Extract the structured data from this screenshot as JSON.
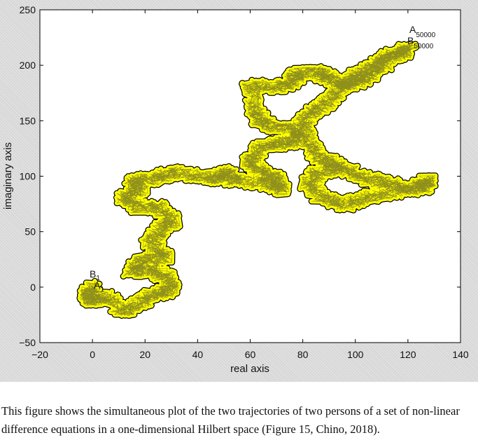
{
  "chart_data": {
    "type": "line",
    "title": "",
    "xlabel": "real axis",
    "ylabel": "imaginary axis",
    "xlim": [
      -20,
      140
    ],
    "ylim": [
      -50,
      250
    ],
    "xticks": [
      -20,
      0,
      20,
      40,
      60,
      80,
      100,
      120,
      140
    ],
    "yticks": [
      -50,
      0,
      50,
      100,
      150,
      200,
      250
    ],
    "grid": false,
    "colors": {
      "fill": "#ffff00",
      "edge": "#000000",
      "background": "#ffffff"
    },
    "trajectory_path": [
      [
        0,
        0
      ],
      [
        -2,
        -8
      ],
      [
        0,
        -12
      ],
      [
        4,
        -8
      ],
      [
        12,
        -22
      ],
      [
        18,
        -14
      ],
      [
        24,
        -6
      ],
      [
        30,
        -2
      ],
      [
        28,
        10
      ],
      [
        22,
        16
      ],
      [
        15,
        14
      ],
      [
        20,
        26
      ],
      [
        28,
        26
      ],
      [
        22,
        40
      ],
      [
        26,
        52
      ],
      [
        30,
        60
      ],
      [
        26,
        72
      ],
      [
        18,
        72
      ],
      [
        12,
        80
      ],
      [
        18,
        88
      ],
      [
        15,
        96
      ],
      [
        25,
        98
      ],
      [
        30,
        104
      ],
      [
        40,
        100
      ],
      [
        48,
        98
      ],
      [
        51,
        104
      ],
      [
        54,
        96
      ],
      [
        66,
        94
      ],
      [
        72,
        88
      ],
      [
        70,
        98
      ],
      [
        64,
        104
      ],
      [
        60,
        114
      ],
      [
        64,
        126
      ],
      [
        72,
        130
      ],
      [
        78,
        132
      ],
      [
        78,
        142
      ],
      [
        70,
        144
      ],
      [
        64,
        150
      ],
      [
        62,
        160
      ],
      [
        60,
        182
      ],
      [
        70,
        180
      ],
      [
        76,
        184
      ],
      [
        78,
        192
      ],
      [
        86,
        194
      ],
      [
        90,
        188
      ],
      [
        96,
        182
      ],
      [
        100,
        190
      ],
      [
        106,
        196
      ],
      [
        110,
        206
      ],
      [
        116,
        210
      ],
      [
        120,
        215
      ],
      [
        110,
        200
      ],
      [
        104,
        188
      ],
      [
        98,
        184
      ],
      [
        94,
        180
      ],
      [
        90,
        166
      ],
      [
        84,
        160
      ],
      [
        80,
        148
      ],
      [
        82,
        130
      ],
      [
        86,
        118
      ],
      [
        90,
        112
      ],
      [
        96,
        106
      ],
      [
        104,
        98
      ],
      [
        112,
        94
      ],
      [
        120,
        88
      ],
      [
        128,
        96
      ],
      [
        126,
        90
      ],
      [
        114,
        86
      ],
      [
        104,
        80
      ],
      [
        96,
        74
      ],
      [
        88,
        80
      ],
      [
        82,
        92
      ],
      [
        86,
        104
      ],
      [
        94,
        108
      ]
    ],
    "labels": {
      "start_a": {
        "base": "A",
        "sub": "1"
      },
      "start_b": {
        "base": "B",
        "sub": "1"
      },
      "end_a": {
        "base": "A",
        "sub": "50000"
      },
      "end_b": {
        "base": "B",
        "sub": "50000"
      }
    }
  },
  "caption": "This figure shows the simultaneous plot of the two trajectories of two persons of a set of non-linear difference equations in a one-dimensional Hilbert space (Figure 15, Chino, 2018)."
}
